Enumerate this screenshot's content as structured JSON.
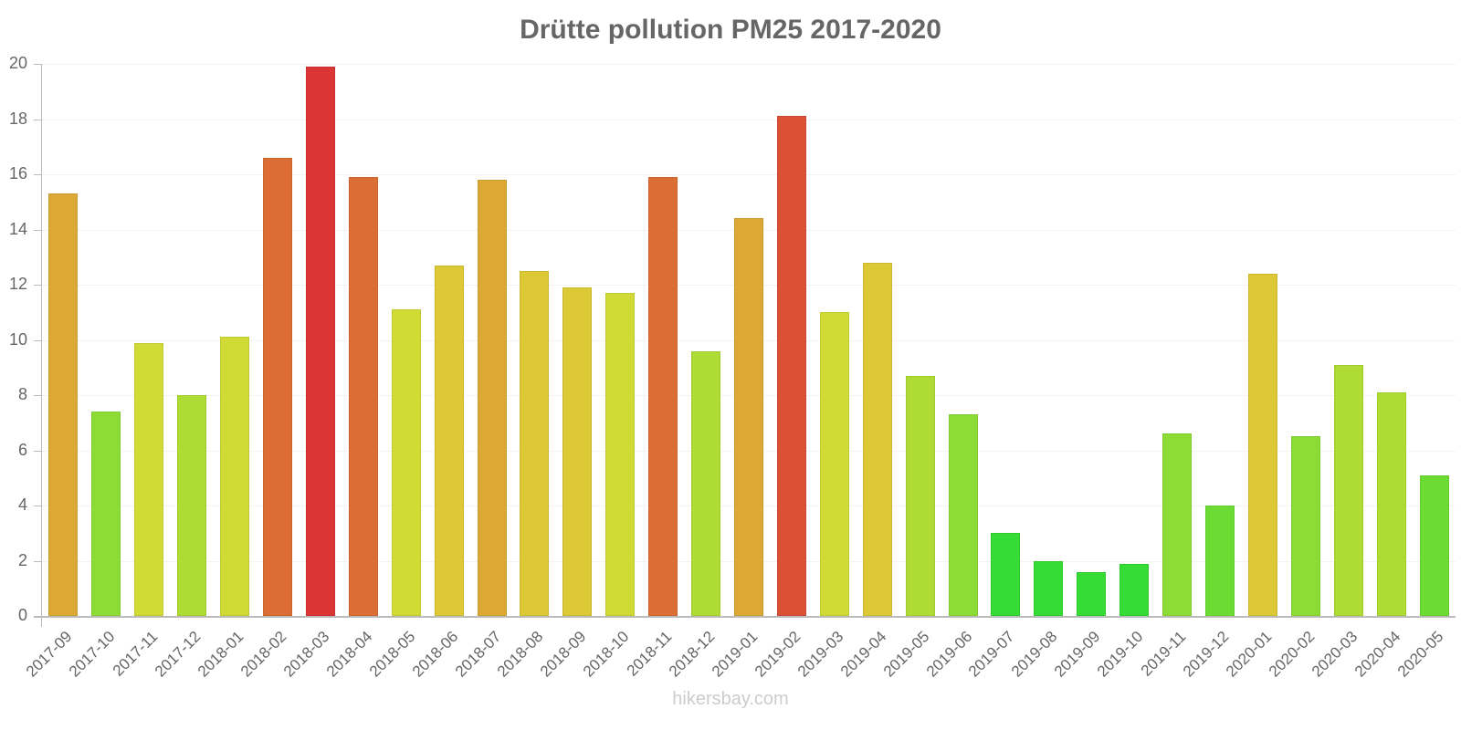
{
  "chart_data": {
    "type": "bar",
    "title": "Drütte pollution PM25 2017-2020",
    "xlabel": "",
    "ylabel": "",
    "ylim": [
      0,
      20
    ],
    "yticks": [
      0,
      2,
      4,
      6,
      8,
      10,
      12,
      14,
      16,
      18,
      20
    ],
    "grid": true,
    "legend": null,
    "categories": [
      "2017-09",
      "2017-10",
      "2017-11",
      "2017-12",
      "2018-01",
      "2018-02",
      "2018-03",
      "2018-04",
      "2018-05",
      "2018-06",
      "2018-07",
      "2018-08",
      "2018-09",
      "2018-10",
      "2018-11",
      "2018-12",
      "2019-01",
      "2019-02",
      "2019-03",
      "2019-04",
      "2019-05",
      "2019-06",
      "2019-07",
      "2019-08",
      "2019-09",
      "2019-10",
      "2019-11",
      "2019-12",
      "2020-01",
      "2020-02",
      "2020-03",
      "2020-04",
      "2020-05"
    ],
    "values": [
      15.3,
      7.4,
      9.9,
      8.0,
      10.1,
      16.6,
      19.9,
      15.9,
      11.1,
      12.7,
      15.8,
      12.5,
      11.9,
      11.7,
      15.9,
      9.6,
      14.4,
      18.1,
      11.0,
      12.8,
      8.7,
      7.3,
      3.0,
      2.0,
      1.6,
      1.9,
      6.6,
      4.0,
      12.4,
      6.5,
      9.1,
      8.1,
      5.1
    ],
    "colors": [
      "#dca935",
      "#8cdc35",
      "#d0dc35",
      "#aedc35",
      "#d0dc35",
      "#dc6e35",
      "#dc3535",
      "#dc6e35",
      "#d0dc35",
      "#dcc935",
      "#dca935",
      "#dcc935",
      "#dcc935",
      "#d0dc35",
      "#dc6e35",
      "#aedc35",
      "#dca935",
      "#dc5035",
      "#d0dc35",
      "#dcc935",
      "#aedc35",
      "#8cdc35",
      "#35dc35",
      "#35dc35",
      "#35dc35",
      "#35dc35",
      "#8cdc35",
      "#6cdc35",
      "#dcc935",
      "#8cdc35",
      "#aedc35",
      "#aedc35",
      "#6cdc35"
    ]
  },
  "watermark": "hikersbay.com"
}
